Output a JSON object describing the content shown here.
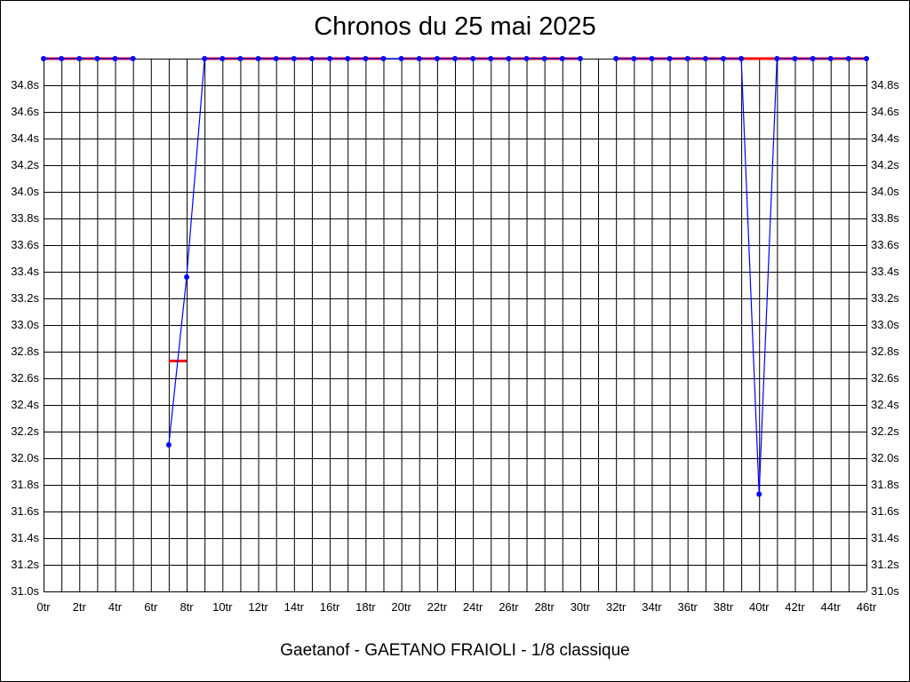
{
  "chart_data": {
    "type": "line",
    "title": "Chronos du 25 mai 2025",
    "footer": "Gaetanof - GAETANO FRAIOLI - 1/8 classique",
    "x_ticks": [
      "0tr",
      "2tr",
      "4tr",
      "6tr",
      "8tr",
      "10tr",
      "12tr",
      "14tr",
      "16tr",
      "18tr",
      "20tr",
      "22tr",
      "24tr",
      "26tr",
      "28tr",
      "30tr",
      "32tr",
      "34tr",
      "36tr",
      "38tr",
      "40tr",
      "42tr",
      "44tr",
      "46tr"
    ],
    "y_ticks": [
      "31.0s",
      "31.2s",
      "31.4s",
      "31.6s",
      "31.8s",
      "32.0s",
      "32.2s",
      "32.4s",
      "32.6s",
      "32.8s",
      "33.0s",
      "33.2s",
      "33.4s",
      "33.6s",
      "33.8s",
      "34.0s",
      "34.2s",
      "34.4s",
      "34.6s",
      "34.8s"
    ],
    "xlim": [
      0,
      46
    ],
    "ylim": [
      31.0,
      35.0
    ],
    "grid": true,
    "colors": {
      "laps": "#0000ff",
      "average": "#ff0000"
    },
    "series": [
      {
        "values": [
          [
            0,
            35.0
          ],
          [
            1,
            35.0
          ],
          [
            2,
            35.0
          ],
          [
            3,
            35.0
          ],
          [
            4,
            35.0
          ],
          [
            5,
            35.0
          ],
          [
            7,
            32.1
          ],
          [
            8,
            33.36
          ],
          [
            9,
            35.0
          ],
          [
            10,
            35.0
          ],
          [
            11,
            35.0
          ],
          [
            12,
            35.0
          ],
          [
            13,
            35.0
          ],
          [
            14,
            35.0
          ],
          [
            15,
            35.0
          ],
          [
            16,
            35.0
          ],
          [
            17,
            35.0
          ],
          [
            18,
            35.0
          ],
          [
            19,
            35.0
          ],
          [
            20,
            35.0
          ],
          [
            21,
            35.0
          ],
          [
            22,
            35.0
          ],
          [
            23,
            35.0
          ],
          [
            24,
            35.0
          ],
          [
            25,
            35.0
          ],
          [
            26,
            35.0
          ],
          [
            27,
            35.0
          ],
          [
            28,
            35.0
          ],
          [
            29,
            35.0
          ],
          [
            30,
            35.0
          ],
          [
            32,
            35.0
          ],
          [
            33,
            35.0
          ],
          [
            34,
            35.0
          ],
          [
            35,
            35.0
          ],
          [
            36,
            35.0
          ],
          [
            37,
            35.0
          ],
          [
            38,
            35.0
          ],
          [
            39,
            35.0
          ],
          [
            40,
            31.73
          ],
          [
            41,
            35.0
          ],
          [
            42,
            35.0
          ],
          [
            43,
            35.0
          ],
          [
            44,
            35.0
          ],
          [
            45,
            35.0
          ],
          [
            46,
            35.0
          ]
        ]
      }
    ],
    "averages": [
      {
        "x": [
          0,
          5
        ],
        "y": 35.0
      },
      {
        "x": [
          7,
          8
        ],
        "y": 32.73
      },
      {
        "x": [
          9,
          19
        ],
        "y": 35.0
      },
      {
        "x": [
          20,
          30
        ],
        "y": 35.0
      },
      {
        "x": [
          32,
          46
        ],
        "y": 35.0
      }
    ]
  }
}
